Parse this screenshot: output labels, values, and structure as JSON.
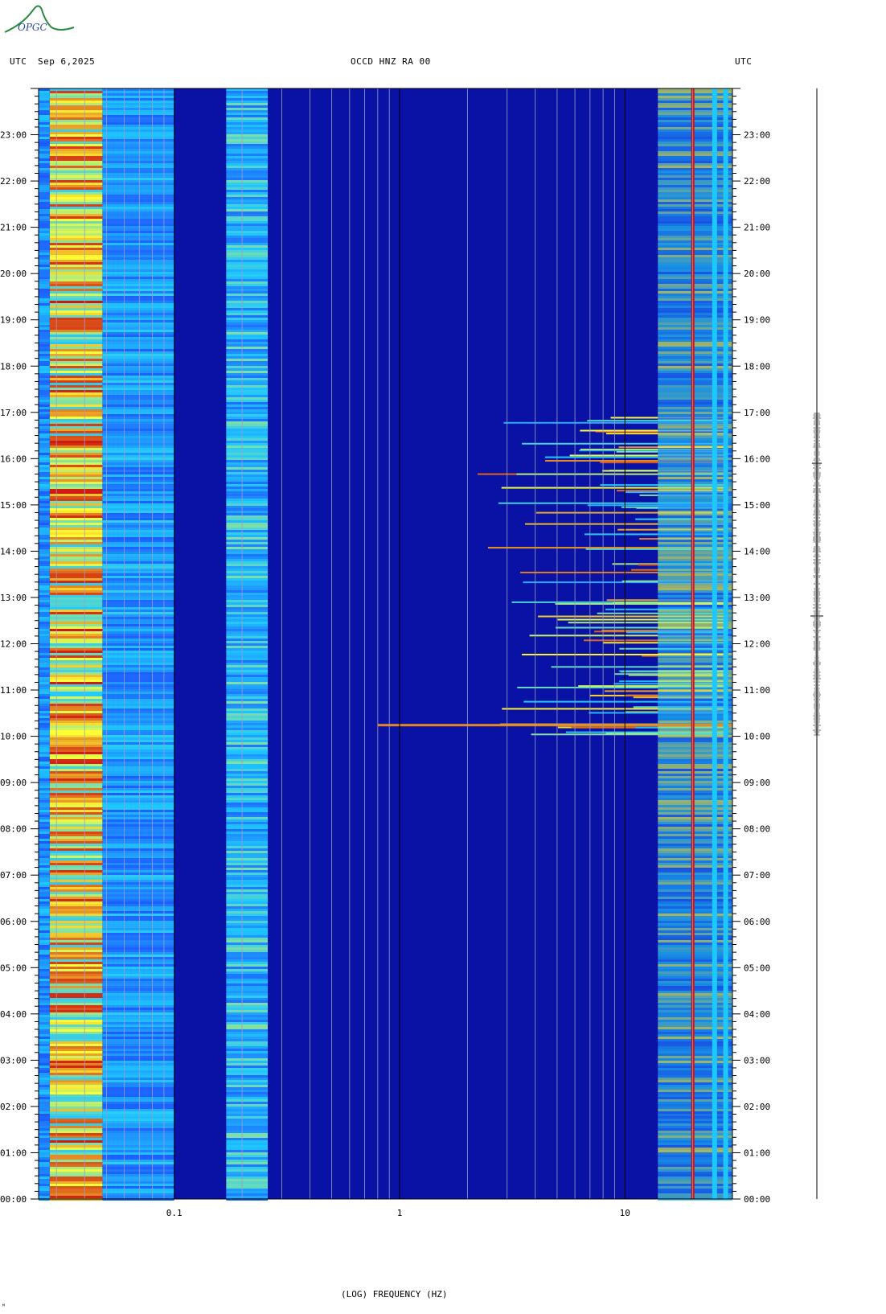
{
  "logo": {
    "text": "OPGC"
  },
  "header": {
    "left_utc": "UTC",
    "date": "Sep 6,2025",
    "station": "OCCD HNZ RA 00",
    "right_utc": "UTC"
  },
  "footer": {
    "mark": "ᴹ"
  },
  "chart_data": {
    "type": "heatmap",
    "title": "OCCD HNZ RA 00",
    "xlabel": "(LOG) FREQUENCY (HZ)",
    "x_scale": "log",
    "xlim": [
      0.025,
      30
    ],
    "x_ticks": [
      {
        "value": 0.1,
        "label": "0.1"
      },
      {
        "value": 1,
        "label": "1"
      },
      {
        "value": 10,
        "label": "10"
      }
    ],
    "y_ticks": [
      "23:00",
      "22:00",
      "21:00",
      "20:00",
      "19:00",
      "18:00",
      "17:00",
      "16:00",
      "15:00",
      "14:00",
      "13:00",
      "12:00",
      "11:00",
      "10:00",
      "09:00",
      "08:00",
      "07:00",
      "06:00",
      "05:00",
      "04:00",
      "03:00",
      "02:00",
      "01:00",
      "00:00"
    ],
    "ylim_hours": [
      0,
      24
    ],
    "colormap": [
      "#0a12a6",
      "#1530e0",
      "#1e66ff",
      "#1ec8ff",
      "#ffff33",
      "#cc1010",
      "#800000"
    ],
    "noise_bands": [
      {
        "fmin": 0.028,
        "fmax": 0.048,
        "level": 0.72
      },
      {
        "fmin": 0.048,
        "fmax": 0.1,
        "level": 0.45
      },
      {
        "fmin": 0.17,
        "fmax": 0.26,
        "level": 0.5
      }
    ],
    "persistent_lines_hz": [
      20,
      25,
      28
    ],
    "activity_window_hours": [
      10,
      17
    ],
    "strongest_event_hour": 10.25
  }
}
